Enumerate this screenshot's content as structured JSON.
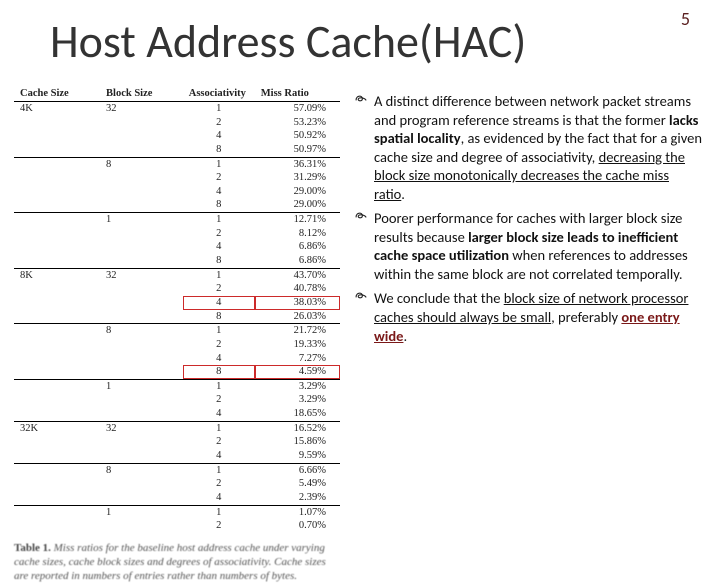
{
  "page_number": "5",
  "title": "Host Address Cache(HAC)",
  "table": {
    "headers": [
      "Cache Size",
      "Block Size",
      "Associativity",
      "Miss Ratio"
    ],
    "groups": [
      {
        "cache": "4K",
        "blocks": [
          {
            "bs": "32",
            "rows": [
              [
                "1",
                "57.09%"
              ],
              [
                "2",
                "53.23%"
              ],
              [
                "4",
                "50.92%"
              ],
              [
                "8",
                "50.97%"
              ]
            ],
            "div": "thin"
          },
          {
            "bs": "8",
            "rows": [
              [
                "1",
                "36.31%"
              ],
              [
                "2",
                "31.29%"
              ],
              [
                "4",
                "29.00%"
              ],
              [
                "8",
                "29.00%"
              ]
            ],
            "div": "thin"
          },
          {
            "bs": "1",
            "rows": [
              [
                "1",
                "12.71%"
              ],
              [
                "2",
                "8.12%"
              ],
              [
                "4",
                "6.86%"
              ],
              [
                "8",
                "6.86%"
              ]
            ],
            "div": "thick"
          }
        ]
      },
      {
        "cache": "8K",
        "blocks": [
          {
            "bs": "32",
            "rows": [
              [
                "1",
                "43.70%"
              ],
              [
                "2",
                "40.78%"
              ],
              [
                "4",
                "38.03%",
                true
              ],
              [
                "8",
                "26.03%"
              ]
            ],
            "div": "thin"
          },
          {
            "bs": "8",
            "rows": [
              [
                "1",
                "21.72%"
              ],
              [
                "2",
                "19.33%"
              ],
              [
                "4",
                "7.27%"
              ],
              [
                "8",
                "4.59%",
                true
              ]
            ],
            "div": "thin"
          },
          {
            "bs": "1",
            "rows": [
              [
                "1",
                "3.29%"
              ],
              [
                "2",
                "3.29%"
              ],
              [
                "4",
                "18.65%"
              ]
            ],
            "div": "thick"
          }
        ]
      },
      {
        "cache": "32K",
        "blocks": [
          {
            "bs": "32",
            "rows": [
              [
                "1",
                "16.52%"
              ],
              [
                "2",
                "15.86%"
              ],
              [
                "4",
                "9.59%"
              ]
            ],
            "div": "thin"
          },
          {
            "bs": "8",
            "rows": [
              [
                "1",
                "6.66%"
              ],
              [
                "2",
                "5.49%"
              ],
              [
                "4",
                "2.39%"
              ]
            ],
            "div": "thin"
          },
          {
            "bs": "1",
            "rows": [
              [
                "1",
                "1.07%"
              ],
              [
                "2",
                "0.70%"
              ]
            ],
            "div": "none"
          }
        ]
      }
    ],
    "caption_lead": "Table 1.",
    "caption_rest": "Miss ratios for the baseline host address cache under varying cache sizes, cache block sizes and degrees of associativity. Cache sizes are reported in numbers of entries rather than numbers of bytes."
  },
  "bullets": [
    {
      "parts": [
        {
          "t": "A distinct difference between network packet streams and program reference streams is that the former "
        },
        {
          "t": "lacks spatial locality",
          "cls": "b"
        },
        {
          "t": ", as evidenced by the fact that for a given cache size and degree of associativity, "
        },
        {
          "t": "decreasing the block size monotonically decreases the cache miss ratio",
          "cls": "u"
        },
        {
          "t": "."
        }
      ]
    },
    {
      "parts": [
        {
          "t": "Poorer performance for caches with larger block size results because "
        },
        {
          "t": "larger block size leads to inefficient cache space utilization",
          "cls": "b"
        },
        {
          "t": " when references to addresses within the same block are not correlated temporally."
        }
      ]
    },
    {
      "parts": [
        {
          "t": "We conclude that the "
        },
        {
          "t": "block size of network processor caches should always be small",
          "cls": "u"
        },
        {
          "t": ", preferably "
        },
        {
          "t": "one entry wide",
          "cls": "bred u"
        },
        {
          "t": "."
        }
      ]
    }
  ]
}
